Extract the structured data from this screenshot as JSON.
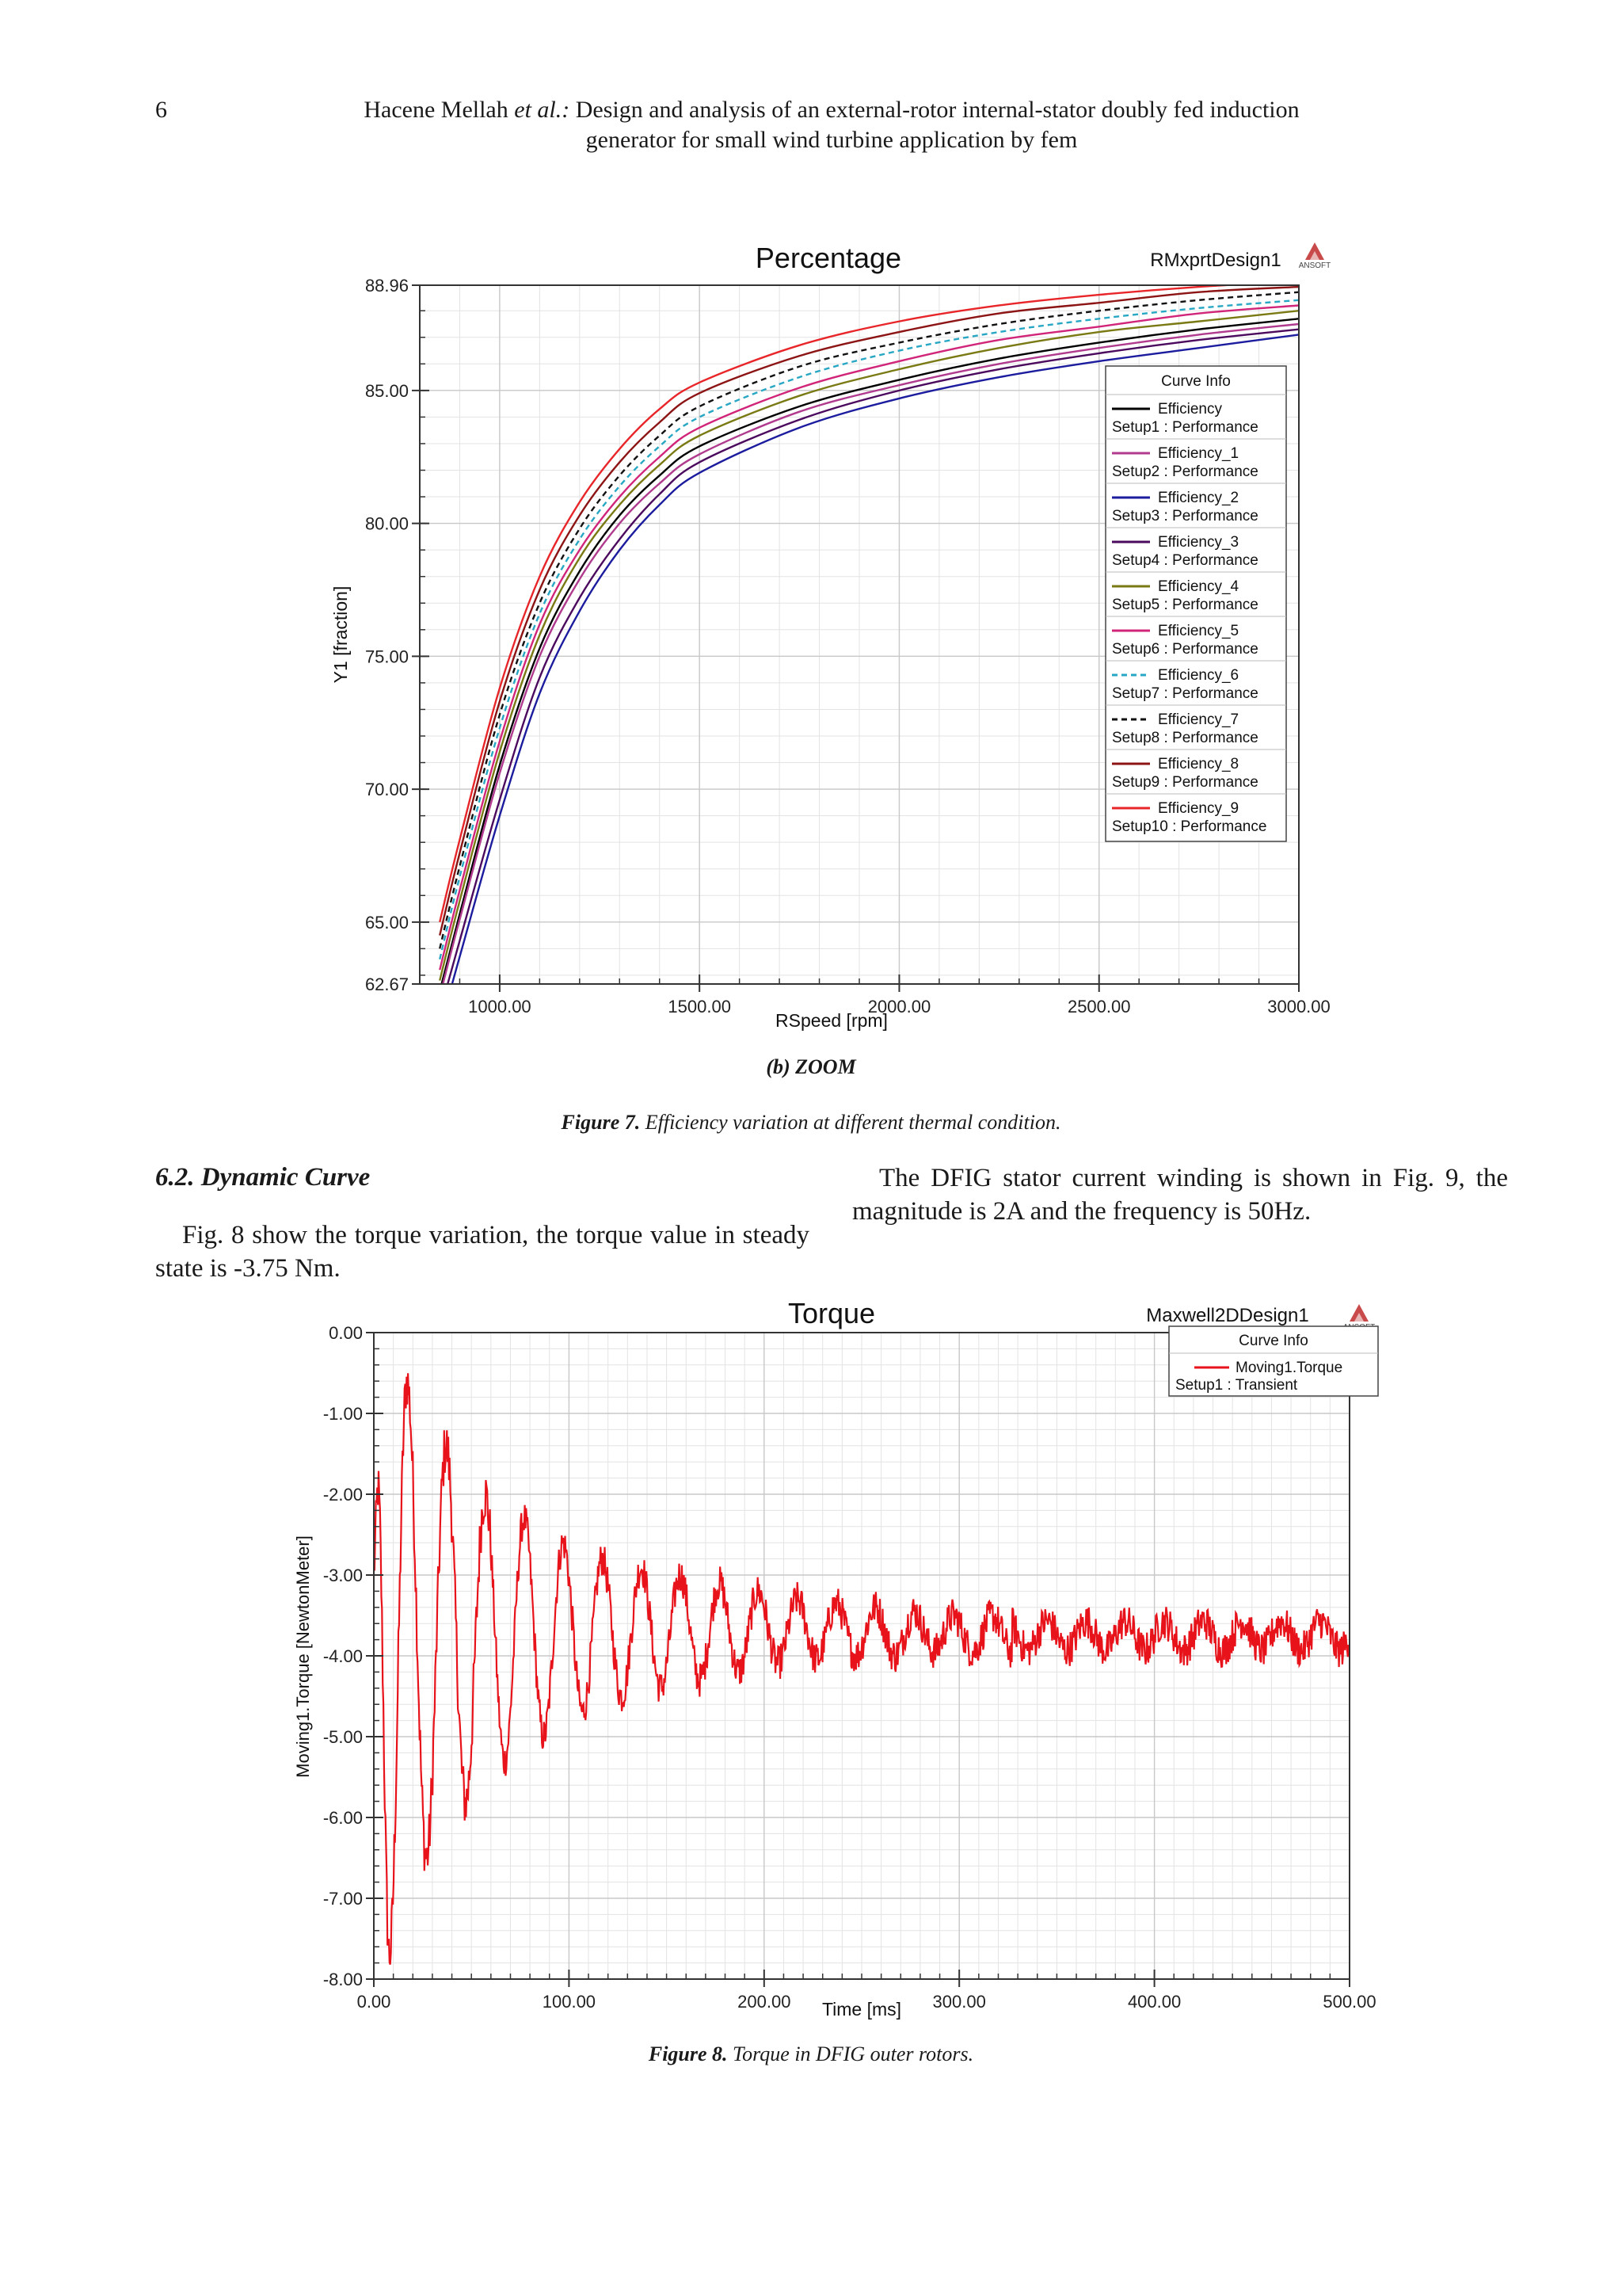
{
  "header": {
    "page_number": "6",
    "authors": "Hacene Mellah",
    "et_al": "et al.:",
    "title_line1": "Design and analysis of an external-rotor internal-stator doubly fed induction",
    "title_line2": "generator for small wind turbine application by fem"
  },
  "figure7": {
    "subcaption": "(b) ZOOM",
    "caption_label": "Figure 7.",
    "caption_text": "Efficiency variation at different thermal condition."
  },
  "section": {
    "heading": "6.2. Dynamic Curve",
    "left_paragraph": "Fig. 8 show the torque variation, the torque value in steady state is -3.75 Nm.",
    "right_paragraph": "The DFIG stator current winding is shown in Fig. 9, the magnitude is 2A and the frequency is 50Hz."
  },
  "figure8": {
    "caption_label": "Figure 8.",
    "caption_text": "Torque in DFIG outer rotors."
  },
  "chart_data": [
    {
      "type": "line",
      "title": "Percentage",
      "design_label": "RMxprtDesign1",
      "logo_text": "ANSOFT",
      "xlabel": "RSpeed [rpm]",
      "ylabel": "Y1 [fraction]",
      "xlim": [
        800,
        3000
      ],
      "ylim": [
        62.67,
        88.96
      ],
      "x_ticks": [
        "1000.00",
        "1500.00",
        "2000.00",
        "2500.00",
        "3000.00"
      ],
      "y_ticks": [
        "62.67",
        "65.00",
        "70.00",
        "75.00",
        "80.00",
        "85.00",
        "88.96"
      ],
      "grid": true,
      "legend_title": "Curve Info",
      "legend_position": "right",
      "x": [
        850,
        900,
        1000,
        1100,
        1200,
        1300,
        1400,
        1500,
        1750,
        2000,
        2250,
        2500,
        2750,
        3000
      ],
      "series": [
        {
          "name": "Efficiency",
          "setup": "Setup1 : Performance",
          "color": "#000000",
          "dash": false,
          "values": [
            62.4,
            65.3,
            70.9,
            75.3,
            78.2,
            80.3,
            81.8,
            82.9,
            84.4,
            85.4,
            86.2,
            86.8,
            87.3,
            87.7
          ]
        },
        {
          "name": "Efficiency_1",
          "setup": "Setup2 : Performance",
          "color": "#b03a8e",
          "dash": false,
          "values": [
            62.2,
            65.1,
            70.6,
            75.0,
            77.9,
            80.0,
            81.5,
            82.6,
            84.2,
            85.2,
            86.0,
            86.6,
            87.1,
            87.5
          ]
        },
        {
          "name": "Efficiency_2",
          "setup": "Setup3 : Performance",
          "color": "#1c1c9e",
          "dash": false,
          "values": [
            61.0,
            63.7,
            69.0,
            73.6,
            76.7,
            79.0,
            80.7,
            81.9,
            83.6,
            84.7,
            85.5,
            86.1,
            86.6,
            87.1
          ]
        },
        {
          "name": "Efficiency_3",
          "setup": "Setup4 : Performance",
          "color": "#4b0a5e",
          "dash": false,
          "values": [
            61.6,
            64.3,
            69.6,
            74.2,
            77.2,
            79.4,
            81.1,
            82.3,
            83.9,
            85.0,
            85.8,
            86.4,
            86.9,
            87.3
          ]
        },
        {
          "name": "Efficiency_4",
          "setup": "Setup5 : Performance",
          "color": "#7a7a14",
          "dash": false,
          "values": [
            62.8,
            65.8,
            71.4,
            75.8,
            78.7,
            80.7,
            82.2,
            83.3,
            84.8,
            85.8,
            86.6,
            87.2,
            87.6,
            88.0
          ]
        },
        {
          "name": "Efficiency_5",
          "setup": "Setup6 : Performance",
          "color": "#d1257a",
          "dash": false,
          "values": [
            63.2,
            66.2,
            71.8,
            76.2,
            79.0,
            81.0,
            82.5,
            83.6,
            85.1,
            86.1,
            86.9,
            87.4,
            87.9,
            88.2
          ]
        },
        {
          "name": "Efficiency_6",
          "setup": "Setup7 : Performance",
          "color": "#28a7c4",
          "dash": true,
          "values": [
            63.6,
            66.7,
            72.3,
            76.6,
            79.4,
            81.4,
            82.9,
            84.0,
            85.5,
            86.5,
            87.2,
            87.7,
            88.1,
            88.4
          ]
        },
        {
          "name": "Efficiency_7",
          "setup": "Setup8 : Performance",
          "color": "#111111",
          "dash": true,
          "values": [
            64.0,
            67.1,
            72.8,
            77.0,
            79.8,
            81.8,
            83.3,
            84.4,
            85.9,
            86.8,
            87.5,
            88.0,
            88.4,
            88.7
          ]
        },
        {
          "name": "Efficiency_8",
          "setup": "Setup9 : Performance",
          "color": "#8c1414",
          "dash": false,
          "values": [
            64.5,
            67.6,
            73.3,
            77.5,
            80.3,
            82.3,
            83.8,
            84.9,
            86.3,
            87.2,
            87.9,
            88.3,
            88.7,
            88.9
          ]
        },
        {
          "name": "Efficiency_9",
          "setup": "Setup10 : Performance",
          "color": "#e8262a",
          "dash": false,
          "values": [
            65.0,
            68.1,
            73.8,
            78.0,
            80.8,
            82.8,
            84.3,
            85.3,
            86.7,
            87.6,
            88.2,
            88.6,
            88.9,
            89.1
          ]
        }
      ]
    },
    {
      "type": "line",
      "title": "Torque",
      "design_label": "Maxwell2DDesign1",
      "logo_text": "ANSOFT",
      "xlabel": "Time [ms]",
      "ylabel": "Moving1.Torque [NewtonMeter]",
      "xlim": [
        0,
        500
      ],
      "ylim": [
        -8.0,
        0.0
      ],
      "x_ticks": [
        "0.00",
        "100.00",
        "200.00",
        "300.00",
        "400.00",
        "500.00"
      ],
      "y_ticks": [
        "0.00",
        "-1.00",
        "-2.00",
        "-3.00",
        "-4.00",
        "-5.00",
        "-6.00",
        "-7.00",
        "-8.00"
      ],
      "grid": true,
      "legend_title": "Curve Info",
      "legend_position": "top-right",
      "series": [
        {
          "name": "Moving1.Torque",
          "setup": "Setup1 : Transient",
          "color": "#e8121a",
          "steady_state": -3.75,
          "oscillation_period_ms": 20,
          "peaks": [
            {
              "t": 2,
              "v": -1.9
            },
            {
              "t": 8,
              "v": -7.7
            },
            {
              "t": 17,
              "v": -0.6
            },
            {
              "t": 27,
              "v": -6.5
            },
            {
              "t": 37,
              "v": -1.4
            },
            {
              "t": 47,
              "v": -5.8
            },
            {
              "t": 57,
              "v": -2.0
            },
            {
              "t": 67,
              "v": -5.3
            },
            {
              "t": 77,
              "v": -2.3
            },
            {
              "t": 87,
              "v": -5.0
            },
            {
              "t": 97,
              "v": -2.6
            },
            {
              "t": 107,
              "v": -4.7
            },
            {
              "t": 117,
              "v": -2.8
            },
            {
              "t": 127,
              "v": -4.5
            },
            {
              "t": 137,
              "v": -2.9
            },
            {
              "t": 147,
              "v": -4.4
            },
            {
              "t": 157,
              "v": -3.0
            },
            {
              "t": 167,
              "v": -4.3
            },
            {
              "t": 177,
              "v": -3.1
            },
            {
              "t": 187,
              "v": -4.2
            },
            {
              "t": 197,
              "v": -3.2
            },
            {
              "t": 207,
              "v": -4.1
            },
            {
              "t": 217,
              "v": -3.3
            },
            {
              "t": 227,
              "v": -4.05
            },
            {
              "t": 237,
              "v": -3.35
            },
            {
              "t": 247,
              "v": -4.0
            },
            {
              "t": 257,
              "v": -3.4
            },
            {
              "t": 267,
              "v": -4.0
            },
            {
              "t": 277,
              "v": -3.45
            },
            {
              "t": 287,
              "v": -3.95
            },
            {
              "t": 297,
              "v": -3.5
            },
            {
              "t": 307,
              "v": -3.95
            },
            {
              "t": 317,
              "v": -3.5
            },
            {
              "t": 327,
              "v": -3.95
            },
            {
              "t": 500,
              "v": -3.75
            }
          ],
          "noise_amplitude": 0.22
        }
      ]
    }
  ]
}
